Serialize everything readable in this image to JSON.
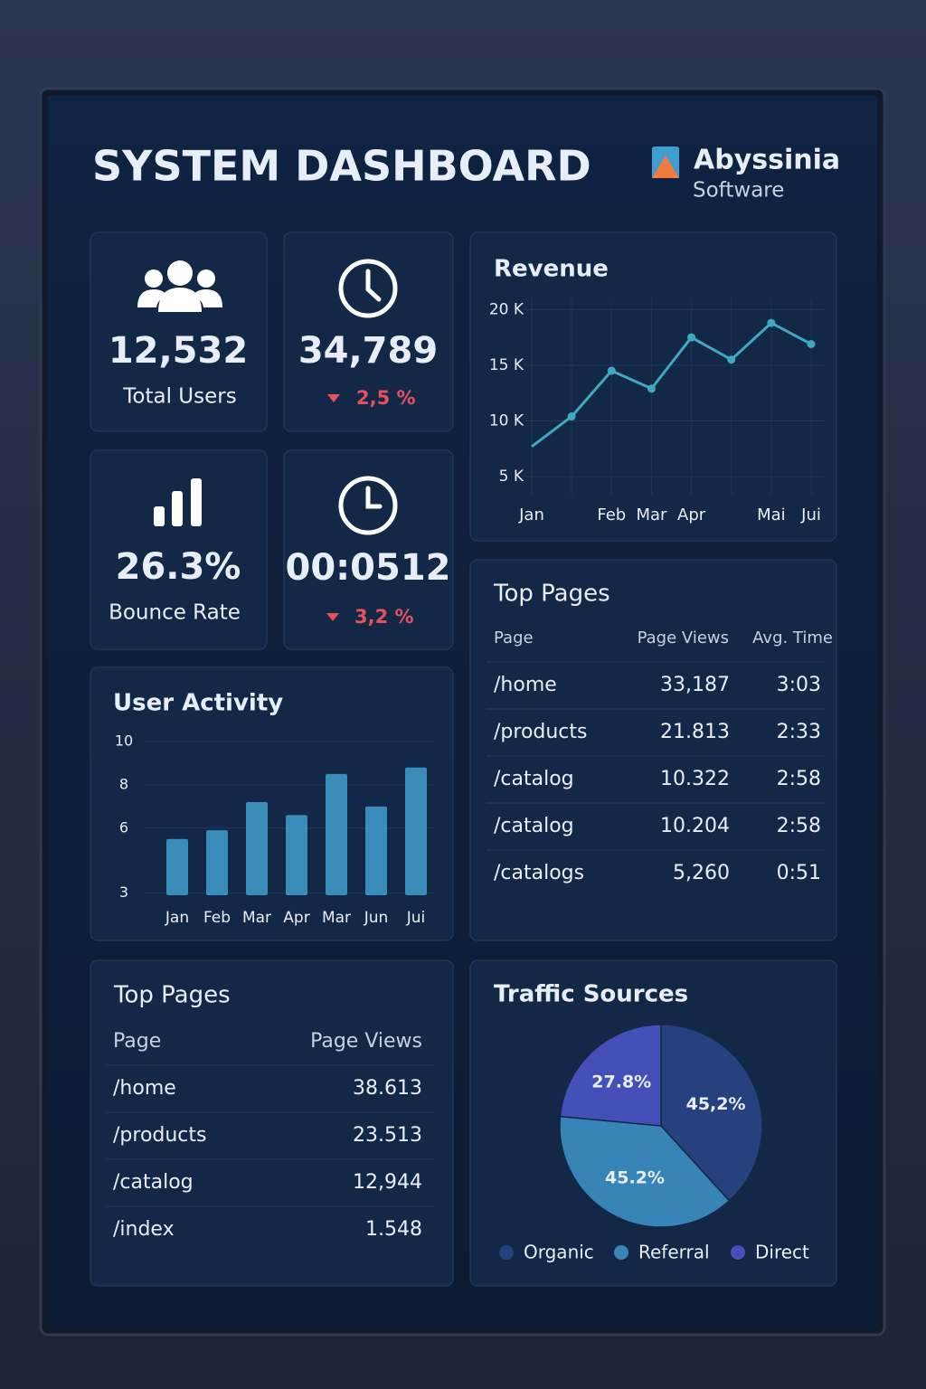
{
  "header": {
    "title": "SYSTEM DASHBOARD",
    "brand": "Abyssinia",
    "brand_sub": "Software"
  },
  "stats": [
    {
      "value": "12,532",
      "label": "Total Users"
    },
    {
      "value": "34,789",
      "change": "2,5 %"
    },
    {
      "value": "26.3%",
      "label": "Bounce Rate"
    },
    {
      "value": "00:0512",
      "change": "3,2 %"
    }
  ],
  "top_pages_1": {
    "title": "Top Pages",
    "columns": [
      "Page",
      "Page Views",
      "Avg. Time"
    ],
    "rows": [
      [
        "/home",
        "33,187",
        "3:03"
      ],
      [
        "/products",
        "21.813",
        "2:33"
      ],
      [
        "/catalog",
        "10.322",
        "2:58"
      ],
      [
        "/catalog",
        "10.204",
        "2:58"
      ],
      [
        "/catalogs",
        "5,260",
        "0:51"
      ]
    ]
  },
  "top_pages_2": {
    "title": "Top Pages",
    "columns": [
      "Page",
      "Page Views"
    ],
    "rows": [
      [
        "/home",
        "38.613"
      ],
      [
        "/products",
        "23.513"
      ],
      [
        "/catalog",
        "12,944"
      ],
      [
        "/index",
        "1.548"
      ]
    ]
  },
  "chart_data": [
    {
      "type": "line",
      "title": "Revenue",
      "categories": [
        "Jan",
        null,
        "Feb",
        "Mar",
        "Apr",
        null,
        "Mai",
        "Jui"
      ],
      "series": [
        {
          "name": "Revenue",
          "color": "#3fa9c0",
          "values": [
            7700,
            10400,
            14500,
            12900,
            17500,
            15500,
            18800,
            16900
          ]
        }
      ],
      "ylim": [
        3300,
        21000
      ],
      "yticks": [
        {
          "value": 5000,
          "label": "5 K"
        },
        {
          "value": 10000,
          "label": "10 K"
        },
        {
          "value": 15000,
          "label": "15 K"
        },
        {
          "value": 20000,
          "label": "20 K"
        }
      ],
      "grid": true
    },
    {
      "type": "bar",
      "title": "User Activity",
      "categories": [
        "Jan",
        "Feb",
        "Mar",
        "Apr",
        "Mar",
        "Jun",
        "Jui"
      ],
      "values": [
        5.5,
        5.9,
        7.2,
        6.6,
        8.5,
        7.0,
        8.8
      ],
      "color": "#3a8db8",
      "ylim": [
        2.9,
        10.5
      ],
      "yticks": [
        3,
        6,
        8,
        10
      ],
      "grid": true
    },
    {
      "type": "pie",
      "title": "Traffic Sources",
      "categories": [
        "Organic",
        "Referral",
        "Direct"
      ],
      "values": [
        45.2,
        45.2,
        27.8
      ],
      "value_labels": [
        "45,2%",
        "45.2%",
        "27.8%"
      ],
      "colors": [
        "#27407e",
        "#3784b6",
        "#4450b8"
      ],
      "legend": "bottom"
    }
  ]
}
